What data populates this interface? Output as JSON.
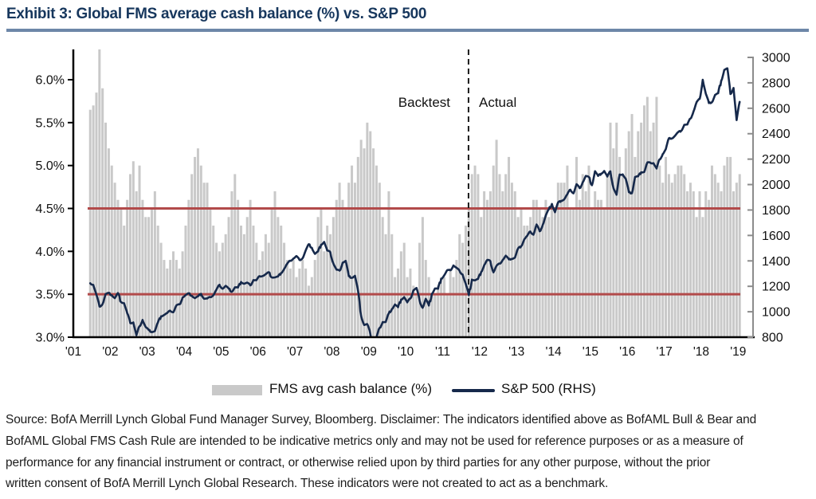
{
  "header": {
    "title": "Exhibit 3: Global FMS average cash balance (%) vs. S&P 500"
  },
  "annotations": {
    "backtest": "Backtest",
    "actual": "Actual"
  },
  "legend": [
    {
      "label": "FMS avg cash balance (%)",
      "swatch": "bar"
    },
    {
      "label": "S&P 500 (RHS)",
      "swatch": "line"
    }
  ],
  "footer": {
    "lines": [
      "Source: BofA Merrill Lynch Global Fund Manager Survey, Bloomberg. Disclaimer: The indicators identified above as BofAML Bull & Bear and",
      "BofAML Global FMS Cash Rule are intended to be indicative metrics only and may not be used for reference purposes  or as a measure of",
      "performance for any financial instrument or contract, or otherwise relied upon by third parties for any other purpose,  without  the prior",
      "written consent  of BofA Merrill Lynch Global Research. These indicators  were not created to act as a benchmark."
    ]
  },
  "colors": {
    "title": "#17375d",
    "title_rule": "#6d87a8",
    "bar": "#c9c9c9",
    "line": "#16294b",
    "reference": "#b24a4a",
    "divider": "#1c1c1c",
    "axis": "#000000",
    "right_axis": "#8c8c8c",
    "tick_text": "#111111"
  },
  "chart_data": {
    "type": "bar",
    "subtype": "combo-bar-line",
    "title": "Global FMS average cash balance (%) vs. S&P 500",
    "x_axis": {
      "tick_values": [
        2001,
        2002,
        2003,
        2004,
        2005,
        2006,
        2007,
        2008,
        2009,
        2010,
        2011,
        2012,
        2013,
        2014,
        2015,
        2016,
        2017,
        2018,
        2019
      ],
      "tick_labels": [
        "'01",
        "'02",
        "'03",
        "'04",
        "'05",
        "'06",
        "'07",
        "'08",
        "'09",
        "'10",
        "'11",
        "'12",
        "'13",
        "'14",
        "'15",
        "'16",
        "'17",
        "'18",
        "'19"
      ],
      "start": 2001.0,
      "end": 2019.45
    },
    "left_axis": {
      "unit": "%",
      "min": 3.0,
      "max": 6.35,
      "tick_values": [
        6.0,
        5.5,
        5.0,
        4.5,
        4.0,
        3.5,
        3.0
      ],
      "tick_labels": [
        "6.0%",
        "5.5%",
        "5.0%",
        "4.5%",
        "4.0%",
        "3.5%",
        "3.0%"
      ]
    },
    "right_axis": {
      "min": 800,
      "max": 3000,
      "tick_values": [
        3000,
        2800,
        2600,
        2400,
        2200,
        2000,
        1800,
        1600,
        1400,
        1200,
        1000,
        800
      ],
      "tick_labels": [
        "3000",
        "2800",
        "2600",
        "2400",
        "2200",
        "2000",
        "1800",
        "1600",
        "1400",
        "1200",
        "1000",
        "800"
      ]
    },
    "reference_lines": [
      {
        "axis": "left",
        "value": 4.5
      },
      {
        "axis": "left",
        "value": 3.5
      }
    ],
    "divider": {
      "x": 2011.7,
      "style": "dashed",
      "left_label": "Backtest",
      "right_label": "Actual"
    },
    "series": [
      {
        "name": "FMS avg cash balance (%)",
        "type": "bar",
        "axis": "left",
        "frequency": "monthly",
        "start": "2001-06",
        "values": [
          5.65,
          5.7,
          5.85,
          6.4,
          5.9,
          5.5,
          5.2,
          5.0,
          4.8,
          4.6,
          4.5,
          4.3,
          4.6,
          4.9,
          5.05,
          4.7,
          5.0,
          4.6,
          4.4,
          4.4,
          4.5,
          4.7,
          4.3,
          4.1,
          3.9,
          3.8,
          3.9,
          4.0,
          3.9,
          3.8,
          4.0,
          4.3,
          4.6,
          4.9,
          5.1,
          5.2,
          5.0,
          4.8,
          4.8,
          4.5,
          4.3,
          4.1,
          4.0,
          4.1,
          4.2,
          4.4,
          4.7,
          4.9,
          4.6,
          4.3,
          4.2,
          4.4,
          4.6,
          4.3,
          4.1,
          3.9,
          4.0,
          4.2,
          4.1,
          4.5,
          4.7,
          4.4,
          4.3,
          4.1,
          3.9,
          3.8,
          3.9,
          3.7,
          3.8,
          3.9,
          3.8,
          3.6,
          3.7,
          3.9,
          4.4,
          4.5,
          4.0,
          4.3,
          4.2,
          4.4,
          4.6,
          4.8,
          4.6,
          4.5,
          4.8,
          5.0,
          4.8,
          5.1,
          5.3,
          5.2,
          5.5,
          5.4,
          5.2,
          5.0,
          4.8,
          4.4,
          4.2,
          4.7,
          4.2,
          3.7,
          3.8,
          4.0,
          4.1,
          3.7,
          3.8,
          3.6,
          3.5,
          4.1,
          4.4,
          3.9,
          3.7,
          3.5,
          3.5,
          3.6,
          3.7,
          3.7,
          3.5,
          3.8,
          3.7,
          3.9,
          4.2,
          4.1,
          4.3,
          4.5,
          4.9,
          5.0,
          4.9,
          4.4,
          4.7,
          4.6,
          4.7,
          5.0,
          5.3,
          4.9,
          4.7,
          4.9,
          5.1,
          4.8,
          4.7,
          4.4,
          4.5,
          4.3,
          4.3,
          4.4,
          4.6,
          4.6,
          4.5,
          4.4,
          4.6,
          4.4,
          4.5,
          4.5,
          4.8,
          4.8,
          4.8,
          5.0,
          4.5,
          4.5,
          5.1,
          4.6,
          4.9,
          4.7,
          5.0,
          4.5,
          4.7,
          4.6,
          4.6,
          4.5,
          4.9,
          5.5,
          5.2,
          5.5,
          5.1,
          4.9,
          5.2,
          5.4,
          5.6,
          5.1,
          5.4,
          5.5,
          5.7,
          5.8,
          5.4,
          5.5,
          5.8,
          5.0,
          4.8,
          5.1,
          4.9,
          4.8,
          4.9,
          5.0,
          5.0,
          4.9,
          4.7,
          4.8,
          4.7,
          4.4,
          4.7,
          4.4,
          4.7,
          4.6,
          5.0,
          4.9,
          4.8,
          4.7,
          5.0,
          5.1,
          5.1,
          4.7,
          4.8,
          4.9
        ]
      },
      {
        "name": "S&P 500 (RHS)",
        "type": "line",
        "axis": "right",
        "frequency": "monthly",
        "start": "2001-06",
        "values": [
          1224,
          1211,
          1134,
          1041,
          1060,
          1139,
          1148,
          1130,
          1107,
          1147,
          1077,
          1067,
          990,
          911,
          916,
          815,
          886,
          936,
          880,
          856,
          841,
          848,
          917,
          964,
          975,
          990,
          1008,
          996,
          1051,
          1058,
          1112,
          1131,
          1145,
          1126,
          1107,
          1121,
          1141,
          1102,
          1104,
          1115,
          1130,
          1174,
          1212,
          1181,
          1204,
          1181,
          1157,
          1192,
          1191,
          1234,
          1220,
          1229,
          1207,
          1249,
          1248,
          1280,
          1281,
          1295,
          1311,
          1270,
          1270,
          1277,
          1304,
          1336,
          1378,
          1401,
          1418,
          1438,
          1407,
          1421,
          1482,
          1531,
          1503,
          1455,
          1474,
          1527,
          1549,
          1481,
          1468,
          1379,
          1331,
          1323,
          1386,
          1400,
          1280,
          1267,
          1283,
          1166,
          969,
          896,
          903,
          826,
          735,
          798,
          873,
          919,
          919,
          987,
          1021,
          1057,
          1036,
          1096,
          1115,
          1074,
          1104,
          1169,
          1187,
          1089,
          1031,
          1102,
          1049,
          1141,
          1183,
          1181,
          1258,
          1286,
          1327,
          1326,
          1364,
          1345,
          1321,
          1292,
          1219,
          1131,
          1253,
          1247,
          1258,
          1312,
          1366,
          1408,
          1398,
          1310,
          1362,
          1379,
          1407,
          1441,
          1412,
          1416,
          1426,
          1498,
          1515,
          1569,
          1598,
          1631,
          1606,
          1686,
          1633,
          1682,
          1757,
          1806,
          1848,
          1783,
          1859,
          1872,
          1884,
          1924,
          1960,
          1931,
          2003,
          1972,
          2018,
          2068,
          2059,
          1995,
          2105,
          2068,
          2086,
          2107,
          2063,
          2104,
          1972,
          1920,
          2079,
          2080,
          2044,
          1940,
          1932,
          2060,
          2065,
          2097,
          2099,
          2174,
          2171,
          2168,
          2126,
          2199,
          2239,
          2279,
          2364,
          2363,
          2384,
          2412,
          2423,
          2470,
          2472,
          2519,
          2575,
          2648,
          2674,
          2824,
          2714,
          2641,
          2648,
          2705,
          2718,
          2816,
          2902,
          2914,
          2712,
          2760,
          2507,
          2650
        ]
      }
    ]
  }
}
